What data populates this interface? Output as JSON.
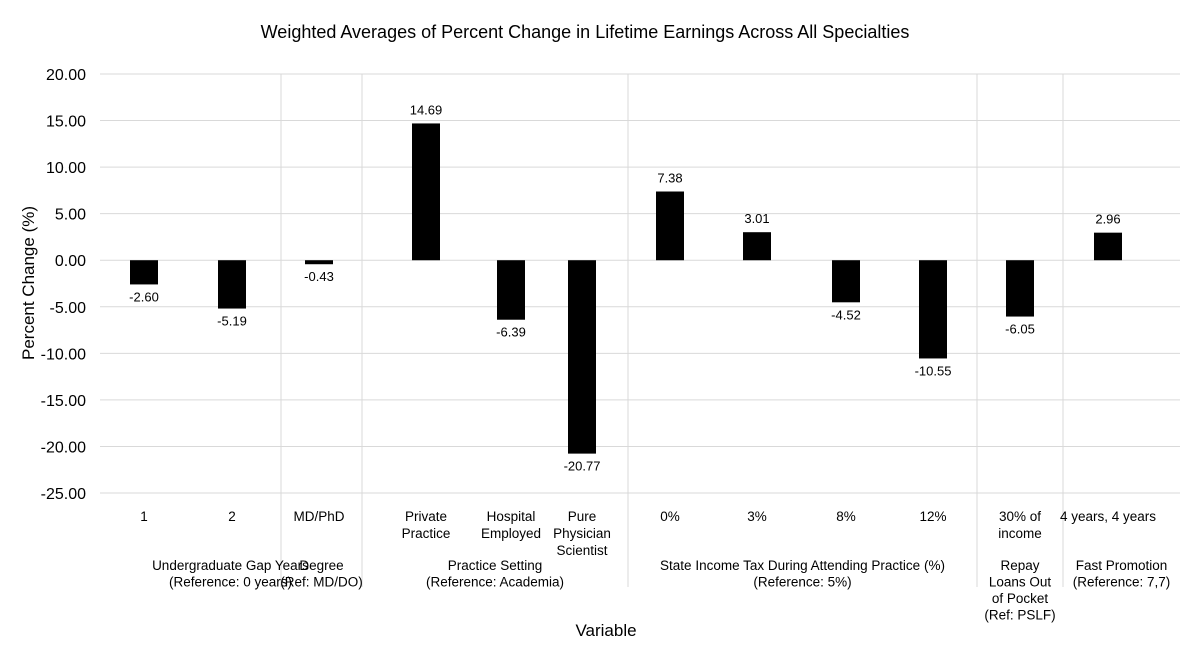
{
  "chart_data": {
    "type": "bar",
    "title": "Weighted Averages of Percent Change in Lifetime Earnings Across All Specialties",
    "xlabel": "Variable",
    "ylabel": "Percent Change (%)",
    "ylim": [
      -25,
      20
    ],
    "yticks": [
      20,
      15,
      10,
      5,
      0,
      -5,
      -10,
      -15,
      -20,
      -25
    ],
    "ytick_labels": [
      "20.00",
      "15.00",
      "10.00",
      "5.00",
      "0.00",
      "-5.00",
      "-10.00",
      "-15.00",
      "-20.00",
      "-25.00"
    ],
    "grid": true,
    "bar_color": "#000000",
    "groups": [
      {
        "label": [
          "Undergraduate Gap Years",
          "(Reference: 0 years)"
        ],
        "categories": [
          {
            "label": [
              "1"
            ],
            "value": -2.6,
            "data_label": "-2.60"
          },
          {
            "label": [
              "2"
            ],
            "value": -5.19,
            "data_label": "-5.19"
          }
        ]
      },
      {
        "label": [
          "Degree",
          "(Ref: MD/DO)"
        ],
        "categories": [
          {
            "label": [
              "MD/PhD"
            ],
            "value": -0.43,
            "data_label": "-0.43"
          }
        ]
      },
      {
        "label": [
          "Practice Setting",
          "(Reference: Academia)"
        ],
        "categories": [
          {
            "label": [
              "Private",
              "Practice"
            ],
            "value": 14.69,
            "data_label": "14.69"
          },
          {
            "label": [
              "Hospital",
              "Employed"
            ],
            "value": -6.39,
            "data_label": "-6.39"
          },
          {
            "label": [
              "Pure",
              "Physician",
              "Scientist"
            ],
            "value": -20.77,
            "data_label": "-20.77"
          }
        ]
      },
      {
        "label": [
          "State Income Tax During Attending Practice (%)",
          "(Reference: 5%)"
        ],
        "categories": [
          {
            "label": [
              "0%"
            ],
            "value": 7.38,
            "data_label": "7.38"
          },
          {
            "label": [
              "3%"
            ],
            "value": 3.01,
            "data_label": "3.01"
          },
          {
            "label": [
              "8%"
            ],
            "value": -4.52,
            "data_label": "-4.52"
          },
          {
            "label": [
              "12%"
            ],
            "value": -10.55,
            "data_label": "-10.55"
          }
        ]
      },
      {
        "label": [
          "Repay",
          "Loans Out",
          "of Pocket",
          "(Ref: PSLF)"
        ],
        "categories": [
          {
            "label": [
              "30% of",
              "income"
            ],
            "value": -6.05,
            "data_label": "-6.05"
          }
        ]
      },
      {
        "label": [
          "Fast Promotion",
          "(Reference: 7,7)"
        ],
        "categories": [
          {
            "label": [
              "4 years, 4 years"
            ],
            "value": 2.96,
            "data_label": "2.96"
          }
        ]
      }
    ]
  }
}
